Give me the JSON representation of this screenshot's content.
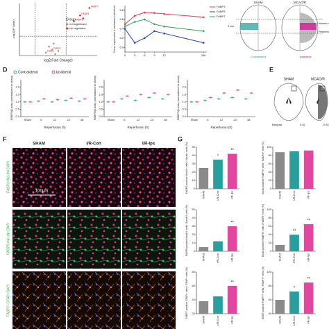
{
  "panel_labels": [
    "D",
    "E",
    "F",
    "G"
  ],
  "panel_a": {
    "type": "scatter",
    "xlabel": "log2(Fold Change)",
    "ylabel": "-log10(P Value)",
    "legend_title": "Group",
    "xlim": [
      -2,
      3
    ],
    "ylim": [
      0,
      3.5
    ],
    "thresholds": {
      "x": [
        -1,
        1
      ],
      "y": 1.3
    },
    "series": [
      {
        "name": "not-significant",
        "color": "#9a9a9a",
        "x": [
          -0.3,
          0.1,
          0.3,
          -0.1,
          0.5,
          0.2
        ],
        "values": [
          0.2,
          0.4,
          0.1,
          0.6,
          0.3,
          0.8
        ]
      },
      {
        "name": "Up-regulated",
        "color": "#e03030",
        "x": [
          1.5,
          1.9,
          2.1,
          2.5
        ],
        "values": [
          2.3,
          2.7,
          2.5,
          3.2
        ]
      }
    ],
    "annotations": [
      {
        "text": "FABP3",
        "x": 1.9,
        "y": 2.7
      },
      {
        "text": "FABP5",
        "x": 1.5,
        "y": 2.3
      },
      {
        "text": "FABP7",
        "x": 2.5,
        "y": 3.2
      },
      {
        "text": "Fabp4",
        "x": 0.1,
        "y": 0.4
      },
      {
        "text": "Fabp1",
        "x": -0.3,
        "y": 0.2
      }
    ]
  },
  "panel_b": {
    "type": "line",
    "ylabel": "Gene expression in ischemic rat blood",
    "x": [
      0,
      3,
      6,
      9,
      12,
      24
    ],
    "xlim": [
      0,
      25
    ],
    "xticks": [
      0,
      3,
      6,
      9,
      12,
      {
        "value": 24,
        "label": "24h"
      }
    ],
    "ylim": [
      5.9,
      6.9
    ],
    "yticks": [
      {
        "value": 6,
        "label": "6.0"
      },
      6.2,
      6.4,
      6.6,
      6.8
    ],
    "series": [
      {
        "name": "FABP3",
        "color": "#e8384f",
        "values": [
          6.5,
          6.68,
          6.75,
          6.74,
          6.72,
          6.65
        ]
      },
      {
        "name": "FABP5",
        "color": "#2a3fd0",
        "values": [
          6.4,
          6.1,
          6.2,
          6.35,
          6.3,
          6.1
        ]
      },
      {
        "name": "FABP7",
        "color": "#2aa84a",
        "values": [
          6.45,
          6.55,
          6.6,
          6.5,
          6.45,
          6.35
        ]
      }
    ]
  },
  "panel_c": {
    "sham": "SHAM",
    "mcao": "MCAO/R",
    "scale": "2 mm",
    "core": "Ischemic core",
    "penumbra": "Penumbra",
    "contra": "Contralateral",
    "ipsi": "Ipsilateral"
  },
  "panel_d": {
    "type": "bar",
    "xlabel": "Reperfusion (h)",
    "categories": [
      "Sham",
      "6",
      "12",
      "24",
      "48"
    ],
    "ylim": [
      0,
      2.5
    ],
    "yticks": [
      {
        "value": 0,
        "label": "0.0"
      },
      0.5,
      {
        "value": 1,
        "label": "1.0"
      },
      1.5,
      {
        "value": 2,
        "label": "2.0"
      }
    ],
    "charts": [
      {
        "ylabel": "FABP3/β-actin (normalized to sham)",
        "series": [
          {
            "name": "Contralateral",
            "color": "#3aa6a6",
            "values": [
              1,
              1.05,
              1,
              1.1,
              1.05
            ]
          },
          {
            "name": "Ipsilateral",
            "color": "#e0479e",
            "values": [
              1,
              1.2,
              1.15,
              1.25,
              1.2
            ]
          }
        ]
      },
      {
        "ylabel": "FABP5/β-actin (normalized to sham)",
        "series": [
          {
            "name": "Contralateral",
            "color": "#3aa6a6",
            "values": [
              1,
              1.2,
              1.1,
              1.3,
              1.2
            ]
          },
          {
            "name": "Ipsilateral",
            "color": "#e0479e",
            "values": [
              1,
              1.4,
              1.5,
              1.6,
              1.5
            ]
          }
        ]
      },
      {
        "ylabel": "FABP7/β-actin (normalized to sham)",
        "series": [
          {
            "name": "Contralateral",
            "color": "#3aa6a6",
            "values": [
              1,
              1.1,
              1.2,
              1.3,
              1.2
            ]
          },
          {
            "name": "Ipsilateral",
            "color": "#e0479e",
            "values": [
              1,
              1.3,
              1.6,
              1.8,
              1.6
            ]
          }
        ]
      }
    ]
  },
  "panel_e": {
    "sham": "SHAM",
    "mcao": "MCAO/R",
    "bregma": "Bregma",
    "left_value": "0.62",
    "right_value": "0.62"
  },
  "panel_f": {
    "columns": [
      "SHAM",
      "I/R-Con",
      "I/R-lps"
    ],
    "rows": [
      "FABP3+NeuN+DAPI",
      "FABP5+NeuN+DAPI",
      "FABP7+GFAP+DAPI"
    ],
    "scale": "100μm"
  },
  "panel_g": {
    "type": "bar",
    "categories": [
      "SHAM",
      "I/R-Con",
      "I/R-lps"
    ],
    "colors": [
      "#8a8a8a",
      "#2a9d9d",
      "#e0479e"
    ],
    "charts": [
      {
        "ylabel": "FABP3-positive NeuN+ cells / NeuN+ cells (%)",
        "values": [
          25,
          35,
          42
        ],
        "ylim": [
          0,
          50
        ],
        "yticks": [
          0,
          10,
          20,
          30,
          40,
          50
        ],
        "annotations": [
          {
            "at": "I/R-Con",
            "text": "*"
          },
          {
            "at": "I/R-lps",
            "text": "**"
          }
        ]
      },
      {
        "ylabel": "NeuN-positive FABP3+ cells / FABP3+ cells (%)",
        "values": [
          88,
          90,
          92
        ],
        "ylim": [
          0,
          100
        ],
        "yticks": [
          0,
          20,
          40,
          60,
          80,
          100
        ],
        "annotations": []
      },
      {
        "ylabel": "FABP5-positive NeuN+ cells / NeuN+ cells (%)",
        "values": [
          5,
          12,
          30
        ],
        "ylim": [
          0,
          50
        ],
        "yticks": [
          0,
          10,
          20,
          30,
          40,
          50
        ],
        "annotations": [
          {
            "at": "I/R-lps",
            "text": "**"
          }
        ]
      },
      {
        "ylabel": "NeuN-positive FABP5+ cells / FABP5+ cells (%)",
        "values": [
          15,
          40,
          65
        ],
        "ylim": [
          0,
          100
        ],
        "yticks": [
          0,
          20,
          40,
          60,
          80,
          100
        ],
        "annotations": [
          {
            "at": "I/R-Con",
            "text": "**"
          },
          {
            "at": "I/R-lps",
            "text": "**"
          }
        ]
      },
      {
        "ylabel": "FABP7-positive GFAP+ cells / GFAP+ cells (%)",
        "values": [
          38,
          45,
          60
        ],
        "ylim": [
          20,
          80
        ],
        "yticks": [
          20,
          40,
          60,
          80
        ],
        "annotations": [
          {
            "at": "I/R-lps",
            "text": "**"
          }
        ]
      },
      {
        "ylabel": "GFAP-positive FABP7+ cells / FABP7+ cells (%)",
        "values": [
          60,
          72,
          85
        ],
        "ylim": [
          40,
          100
        ],
        "yticks": [
          40,
          60,
          80,
          100
        ],
        "annotations": [
          {
            "at": "I/R-Con",
            "text": "*"
          },
          {
            "at": "I/R-lps",
            "text": "**"
          }
        ]
      }
    ]
  }
}
